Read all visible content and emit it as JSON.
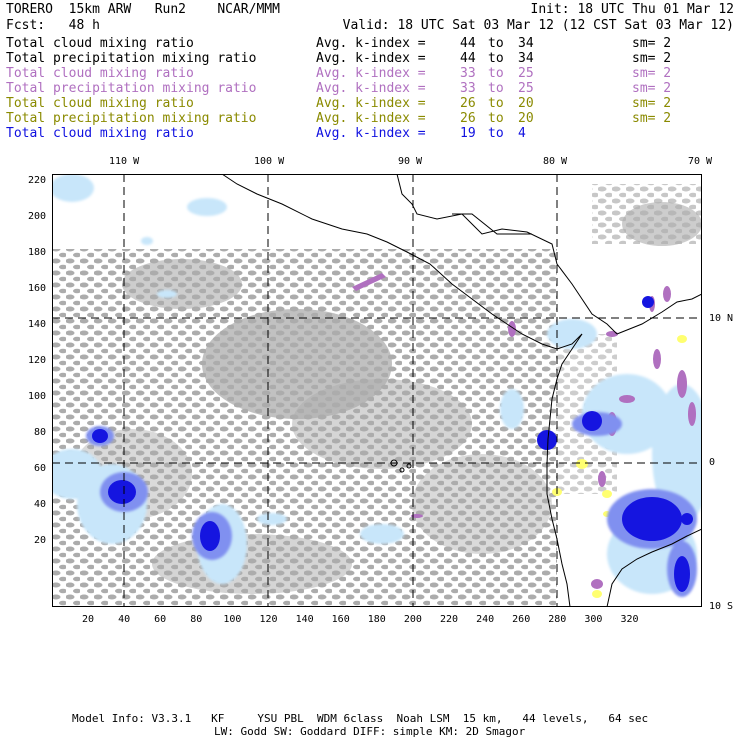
{
  "header": {
    "left_line1": "TORERO  15km ARW   Run2    NCAR/MMM",
    "right_line1": "Init: 18 UTC Thu 01 Mar 12",
    "left_line2": "Fcst:   48 h",
    "right_line2": "Valid: 18 UTC Sat 03 Mar 12 (12 CST Sat 03 Mar 12)"
  },
  "fields": [
    {
      "name": "Total cloud mixing ratio",
      "metric": "Avg. k-index =",
      "from": "44",
      "to_word": "to",
      "to": "34",
      "sm": "sm= 2",
      "color": "#000000"
    },
    {
      "name": "Total precipitation mixing ratio",
      "metric": "Avg. k-index =",
      "from": "44",
      "to_word": "to",
      "to": "34",
      "sm": "sm= 2",
      "color": "#000000"
    },
    {
      "name": "Total cloud mixing ratio",
      "metric": "Avg. k-index =",
      "from": "33",
      "to_word": "to",
      "to": "25",
      "sm": "sm= 2",
      "color": "#b070c0"
    },
    {
      "name": "Total precipitation mixing ratio",
      "metric": "Avg. k-index =",
      "from": "33",
      "to_word": "to",
      "to": "25",
      "sm": "sm= 2",
      "color": "#b070c0"
    },
    {
      "name": "Total cloud mixing ratio",
      "metric": "Avg. k-index =",
      "from": "26",
      "to_word": "to",
      "to": "20",
      "sm": "sm= 2",
      "color": "#8a8a00"
    },
    {
      "name": "Total precipitation mixing ratio",
      "metric": "Avg. k-index =",
      "from": "26",
      "to_word": "to",
      "to": "20",
      "sm": "sm= 2",
      "color": "#8a8a00"
    },
    {
      "name": "Total cloud mixing ratio",
      "metric": "Avg. k-index =",
      "from": "19",
      "to_word": "to",
      "to": "4",
      "sm": "",
      "color": "#1010e0"
    }
  ],
  "map": {
    "lon_labels": [
      "110 W",
      "100 W",
      "90 W",
      "80 W",
      "70 W"
    ],
    "lat_labels": [
      "10 N",
      "0",
      "10 S"
    ],
    "x_ticks": [
      "20",
      "40",
      "60",
      "80",
      "100",
      "120",
      "140",
      "160",
      "180",
      "200",
      "220",
      "240",
      "260",
      "280",
      "300",
      "320"
    ],
    "y_ticks": [
      "220",
      "200",
      "180",
      "160",
      "140",
      "120",
      "100",
      "80",
      "60",
      "40",
      "20"
    ],
    "colors": {
      "gray": "#a8a8a8",
      "light_blue": "#c8e6fa",
      "blue": "#1515e0",
      "mid_blue": "#8090f0",
      "purple": "#b070c0",
      "yellow": "#ffff70"
    }
  },
  "footer": {
    "line1": "Model Info: V3.3.1   KF     YSU PBL  WDM 6class  Noah LSM  15 km,   44 levels,   64 sec",
    "line2": "LW: Godd SW: Goddard DIFF: simple KM: 2D Smagor"
  }
}
